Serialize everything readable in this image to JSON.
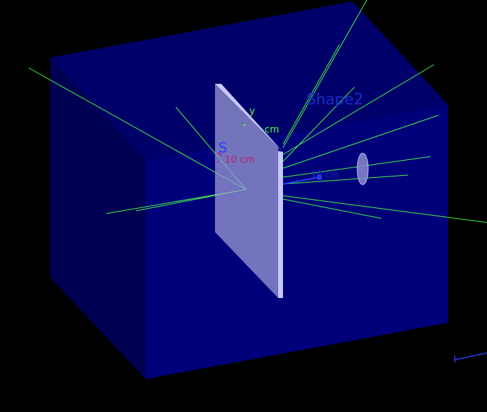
{
  "scene": {
    "background": "#000000",
    "world_box_color": "#00007a",
    "plate_color": "#b8b8f0",
    "track_color": "#44ff44",
    "labels": {
      "shape_label": "Shape2",
      "s_label": "S",
      "y_axis_label": "y",
      "cm_label": "cm",
      "scale_label": "10 cm",
      "blue_scale_label": "10 cm"
    }
  }
}
